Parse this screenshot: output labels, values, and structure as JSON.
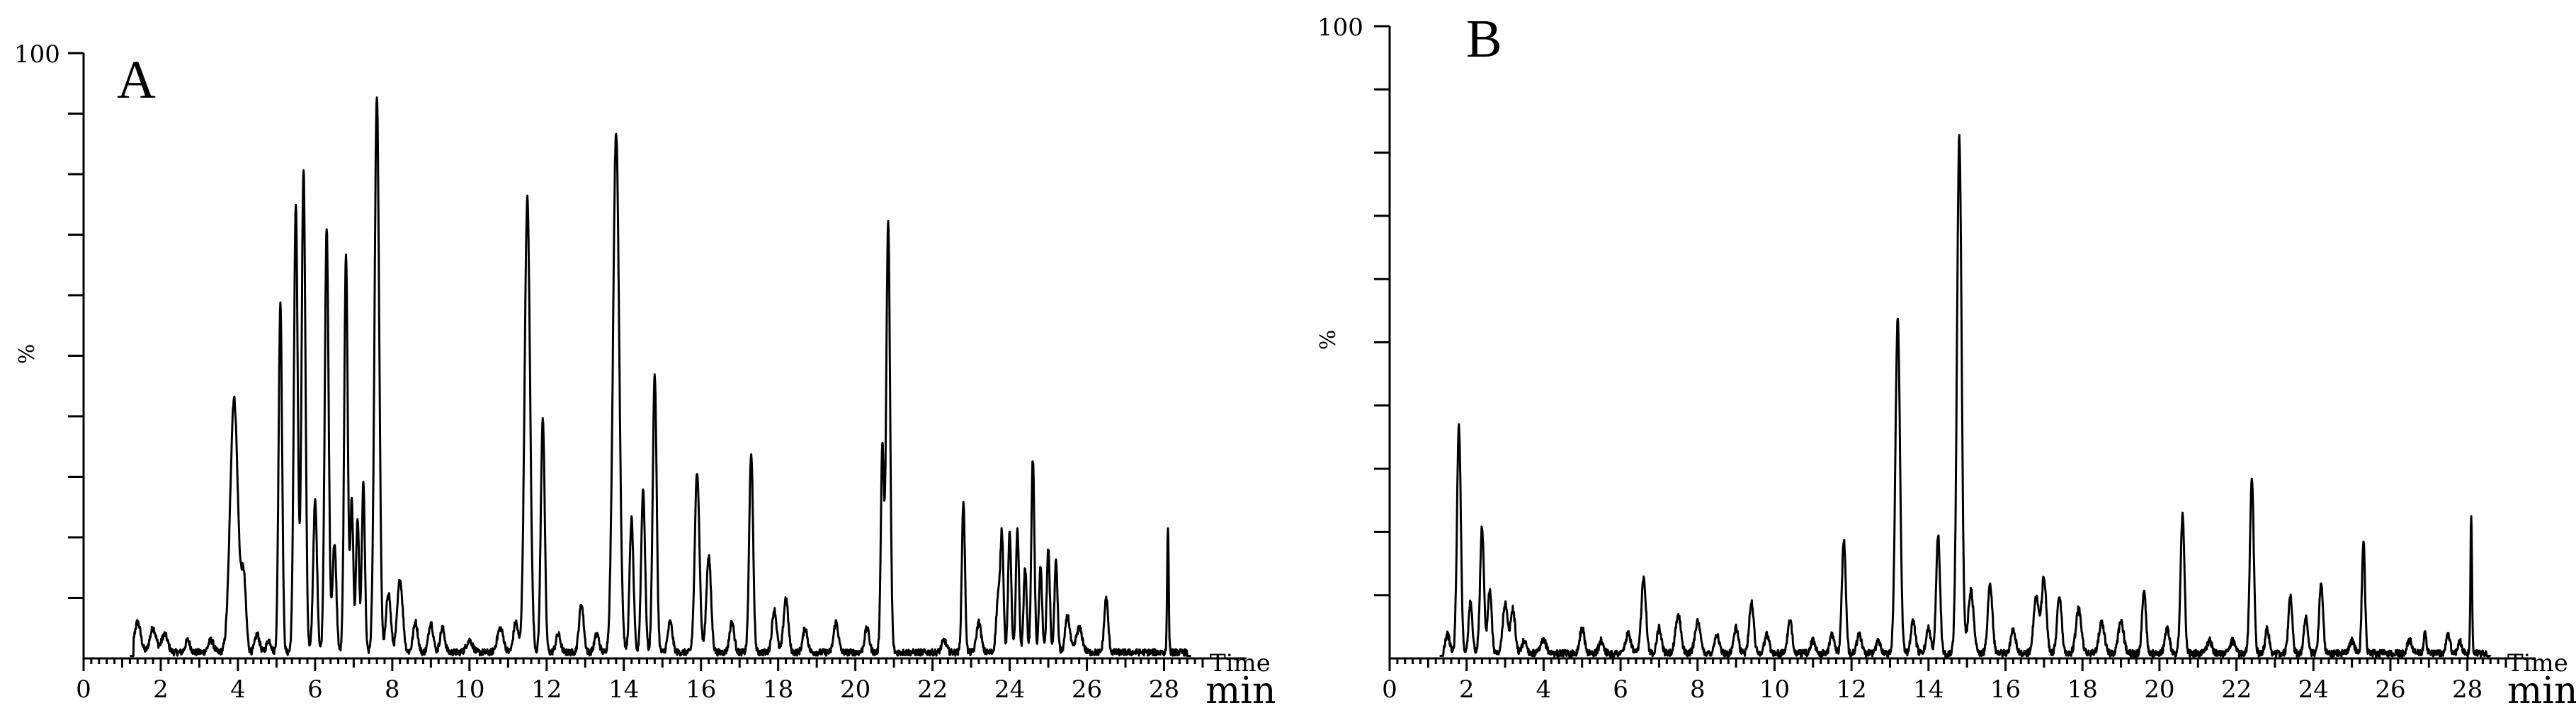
{
  "chart_data": [
    {
      "type": "line",
      "panel_label": "A",
      "ylabel": "%",
      "ytick_top": "100",
      "xlabel_top": "Time",
      "xlabel_bottom": "min",
      "xlim": [
        0,
        29
      ],
      "ylim": [
        0,
        100
      ],
      "x_ticks": [
        "0",
        "2",
        "4",
        "6",
        "8",
        "10",
        "12",
        "14",
        "16",
        "18",
        "20",
        "22",
        "24",
        "26",
        "28"
      ],
      "trace_start": 1.2,
      "trace_end": 28.7,
      "baseline": 1.0,
      "peaks": [
        [
          1.4,
          5,
          0.08
        ],
        [
          1.8,
          4,
          0.08
        ],
        [
          2.1,
          3,
          0.08
        ],
        [
          2.7,
          2,
          0.06
        ],
        [
          3.3,
          2,
          0.07
        ],
        [
          3.9,
          42,
          0.1
        ],
        [
          4.15,
          12,
          0.06
        ],
        [
          4.5,
          3,
          0.06
        ],
        [
          4.8,
          2,
          0.06
        ],
        [
          5.1,
          58,
          0.045
        ],
        [
          5.5,
          74,
          0.05
        ],
        [
          5.7,
          80,
          0.05
        ],
        [
          6.0,
          25,
          0.05
        ],
        [
          6.3,
          70,
          0.05
        ],
        [
          6.5,
          18,
          0.05
        ],
        [
          6.8,
          66,
          0.045
        ],
        [
          6.95,
          25,
          0.04
        ],
        [
          7.1,
          22,
          0.04
        ],
        [
          7.25,
          28,
          0.04
        ],
        [
          7.6,
          92,
          0.06
        ],
        [
          7.9,
          10,
          0.06
        ],
        [
          8.2,
          12,
          0.07
        ],
        [
          8.6,
          5,
          0.06
        ],
        [
          9.0,
          5,
          0.06
        ],
        [
          9.3,
          4,
          0.06
        ],
        [
          10.0,
          2,
          0.08
        ],
        [
          10.8,
          4,
          0.08
        ],
        [
          11.2,
          5,
          0.06
        ],
        [
          11.5,
          75,
          0.07
        ],
        [
          11.9,
          39,
          0.05
        ],
        [
          12.3,
          3,
          0.06
        ],
        [
          12.9,
          8,
          0.06
        ],
        [
          13.3,
          3,
          0.06
        ],
        [
          13.8,
          86,
          0.08
        ],
        [
          14.2,
          22,
          0.05
        ],
        [
          14.5,
          27,
          0.05
        ],
        [
          14.8,
          46,
          0.05
        ],
        [
          15.2,
          5,
          0.06
        ],
        [
          15.9,
          30,
          0.06
        ],
        [
          16.2,
          16,
          0.06
        ],
        [
          16.8,
          5,
          0.06
        ],
        [
          17.3,
          33,
          0.05
        ],
        [
          17.9,
          7,
          0.06
        ],
        [
          18.2,
          9,
          0.06
        ],
        [
          18.7,
          4,
          0.06
        ],
        [
          19.5,
          5,
          0.06
        ],
        [
          20.3,
          4,
          0.06
        ],
        [
          20.7,
          34,
          0.04
        ],
        [
          20.85,
          71,
          0.05
        ],
        [
          22.3,
          2,
          0.06
        ],
        [
          22.8,
          25,
          0.04
        ],
        [
          23.2,
          5,
          0.06
        ],
        [
          23.7,
          9,
          0.05
        ],
        [
          23.8,
          19,
          0.04
        ],
        [
          24.0,
          20,
          0.04
        ],
        [
          24.2,
          20,
          0.04
        ],
        [
          24.4,
          14,
          0.04
        ],
        [
          24.6,
          32,
          0.04
        ],
        [
          24.8,
          14,
          0.04
        ],
        [
          25.0,
          17,
          0.04
        ],
        [
          25.2,
          15,
          0.04
        ],
        [
          25.5,
          6,
          0.06
        ],
        [
          25.8,
          4,
          0.08
        ],
        [
          26.5,
          9,
          0.05
        ],
        [
          28.1,
          21,
          0.02
        ]
      ]
    },
    {
      "type": "line",
      "panel_label": "B",
      "ylabel": "%",
      "ytick_top": "100",
      "xlabel_top": "Time",
      "xlabel_bottom": "min",
      "xlim": [
        0,
        29
      ],
      "ylim": [
        0,
        100
      ],
      "x_ticks": [
        "0",
        "2",
        "4",
        "6",
        "8",
        "10",
        "12",
        "14",
        "16",
        "18",
        "20",
        "22",
        "24",
        "26",
        "28"
      ],
      "trace_start": 1.3,
      "trace_end": 28.6,
      "baseline": 0.8,
      "peaks": [
        [
          1.5,
          3,
          0.06
        ],
        [
          1.8,
          36,
          0.05
        ],
        [
          2.1,
          8,
          0.05
        ],
        [
          2.4,
          20,
          0.05
        ],
        [
          2.6,
          10,
          0.05
        ],
        [
          3.0,
          8,
          0.06
        ],
        [
          3.2,
          7,
          0.06
        ],
        [
          3.5,
          2,
          0.06
        ],
        [
          4.0,
          2,
          0.07
        ],
        [
          5.0,
          4,
          0.06
        ],
        [
          5.5,
          2,
          0.06
        ],
        [
          6.2,
          3,
          0.07
        ],
        [
          6.6,
          12,
          0.06
        ],
        [
          7.0,
          4,
          0.06
        ],
        [
          7.5,
          6,
          0.07
        ],
        [
          8.0,
          5,
          0.07
        ],
        [
          8.5,
          3,
          0.06
        ],
        [
          9.0,
          4,
          0.06
        ],
        [
          9.4,
          8,
          0.06
        ],
        [
          9.8,
          3,
          0.06
        ],
        [
          10.4,
          5,
          0.06
        ],
        [
          11.0,
          2,
          0.06
        ],
        [
          11.5,
          3,
          0.06
        ],
        [
          11.8,
          18,
          0.05
        ],
        [
          12.2,
          3,
          0.06
        ],
        [
          12.7,
          2,
          0.06
        ],
        [
          13.2,
          53,
          0.06
        ],
        [
          13.6,
          5,
          0.06
        ],
        [
          14.0,
          4,
          0.06
        ],
        [
          14.25,
          19,
          0.05
        ],
        [
          14.8,
          82,
          0.06
        ],
        [
          15.1,
          10,
          0.07
        ],
        [
          15.6,
          11,
          0.06
        ],
        [
          16.2,
          4,
          0.06
        ],
        [
          16.8,
          9,
          0.07
        ],
        [
          17.0,
          12,
          0.06
        ],
        [
          17.4,
          9,
          0.06
        ],
        [
          17.9,
          7,
          0.07
        ],
        [
          18.5,
          5,
          0.07
        ],
        [
          19.0,
          5,
          0.07
        ],
        [
          19.6,
          10,
          0.05
        ],
        [
          20.2,
          4,
          0.06
        ],
        [
          20.6,
          22,
          0.05
        ],
        [
          21.3,
          2,
          0.06
        ],
        [
          21.9,
          2,
          0.06
        ],
        [
          22.4,
          28,
          0.05
        ],
        [
          22.8,
          4,
          0.05
        ],
        [
          23.4,
          9,
          0.05
        ],
        [
          23.8,
          6,
          0.05
        ],
        [
          24.2,
          11,
          0.05
        ],
        [
          25.0,
          2,
          0.06
        ],
        [
          25.3,
          18,
          0.04
        ],
        [
          26.5,
          2,
          0.06
        ],
        [
          26.9,
          3,
          0.04
        ],
        [
          27.5,
          3,
          0.05
        ],
        [
          27.8,
          2,
          0.05
        ],
        [
          28.1,
          22,
          0.02
        ]
      ]
    }
  ]
}
